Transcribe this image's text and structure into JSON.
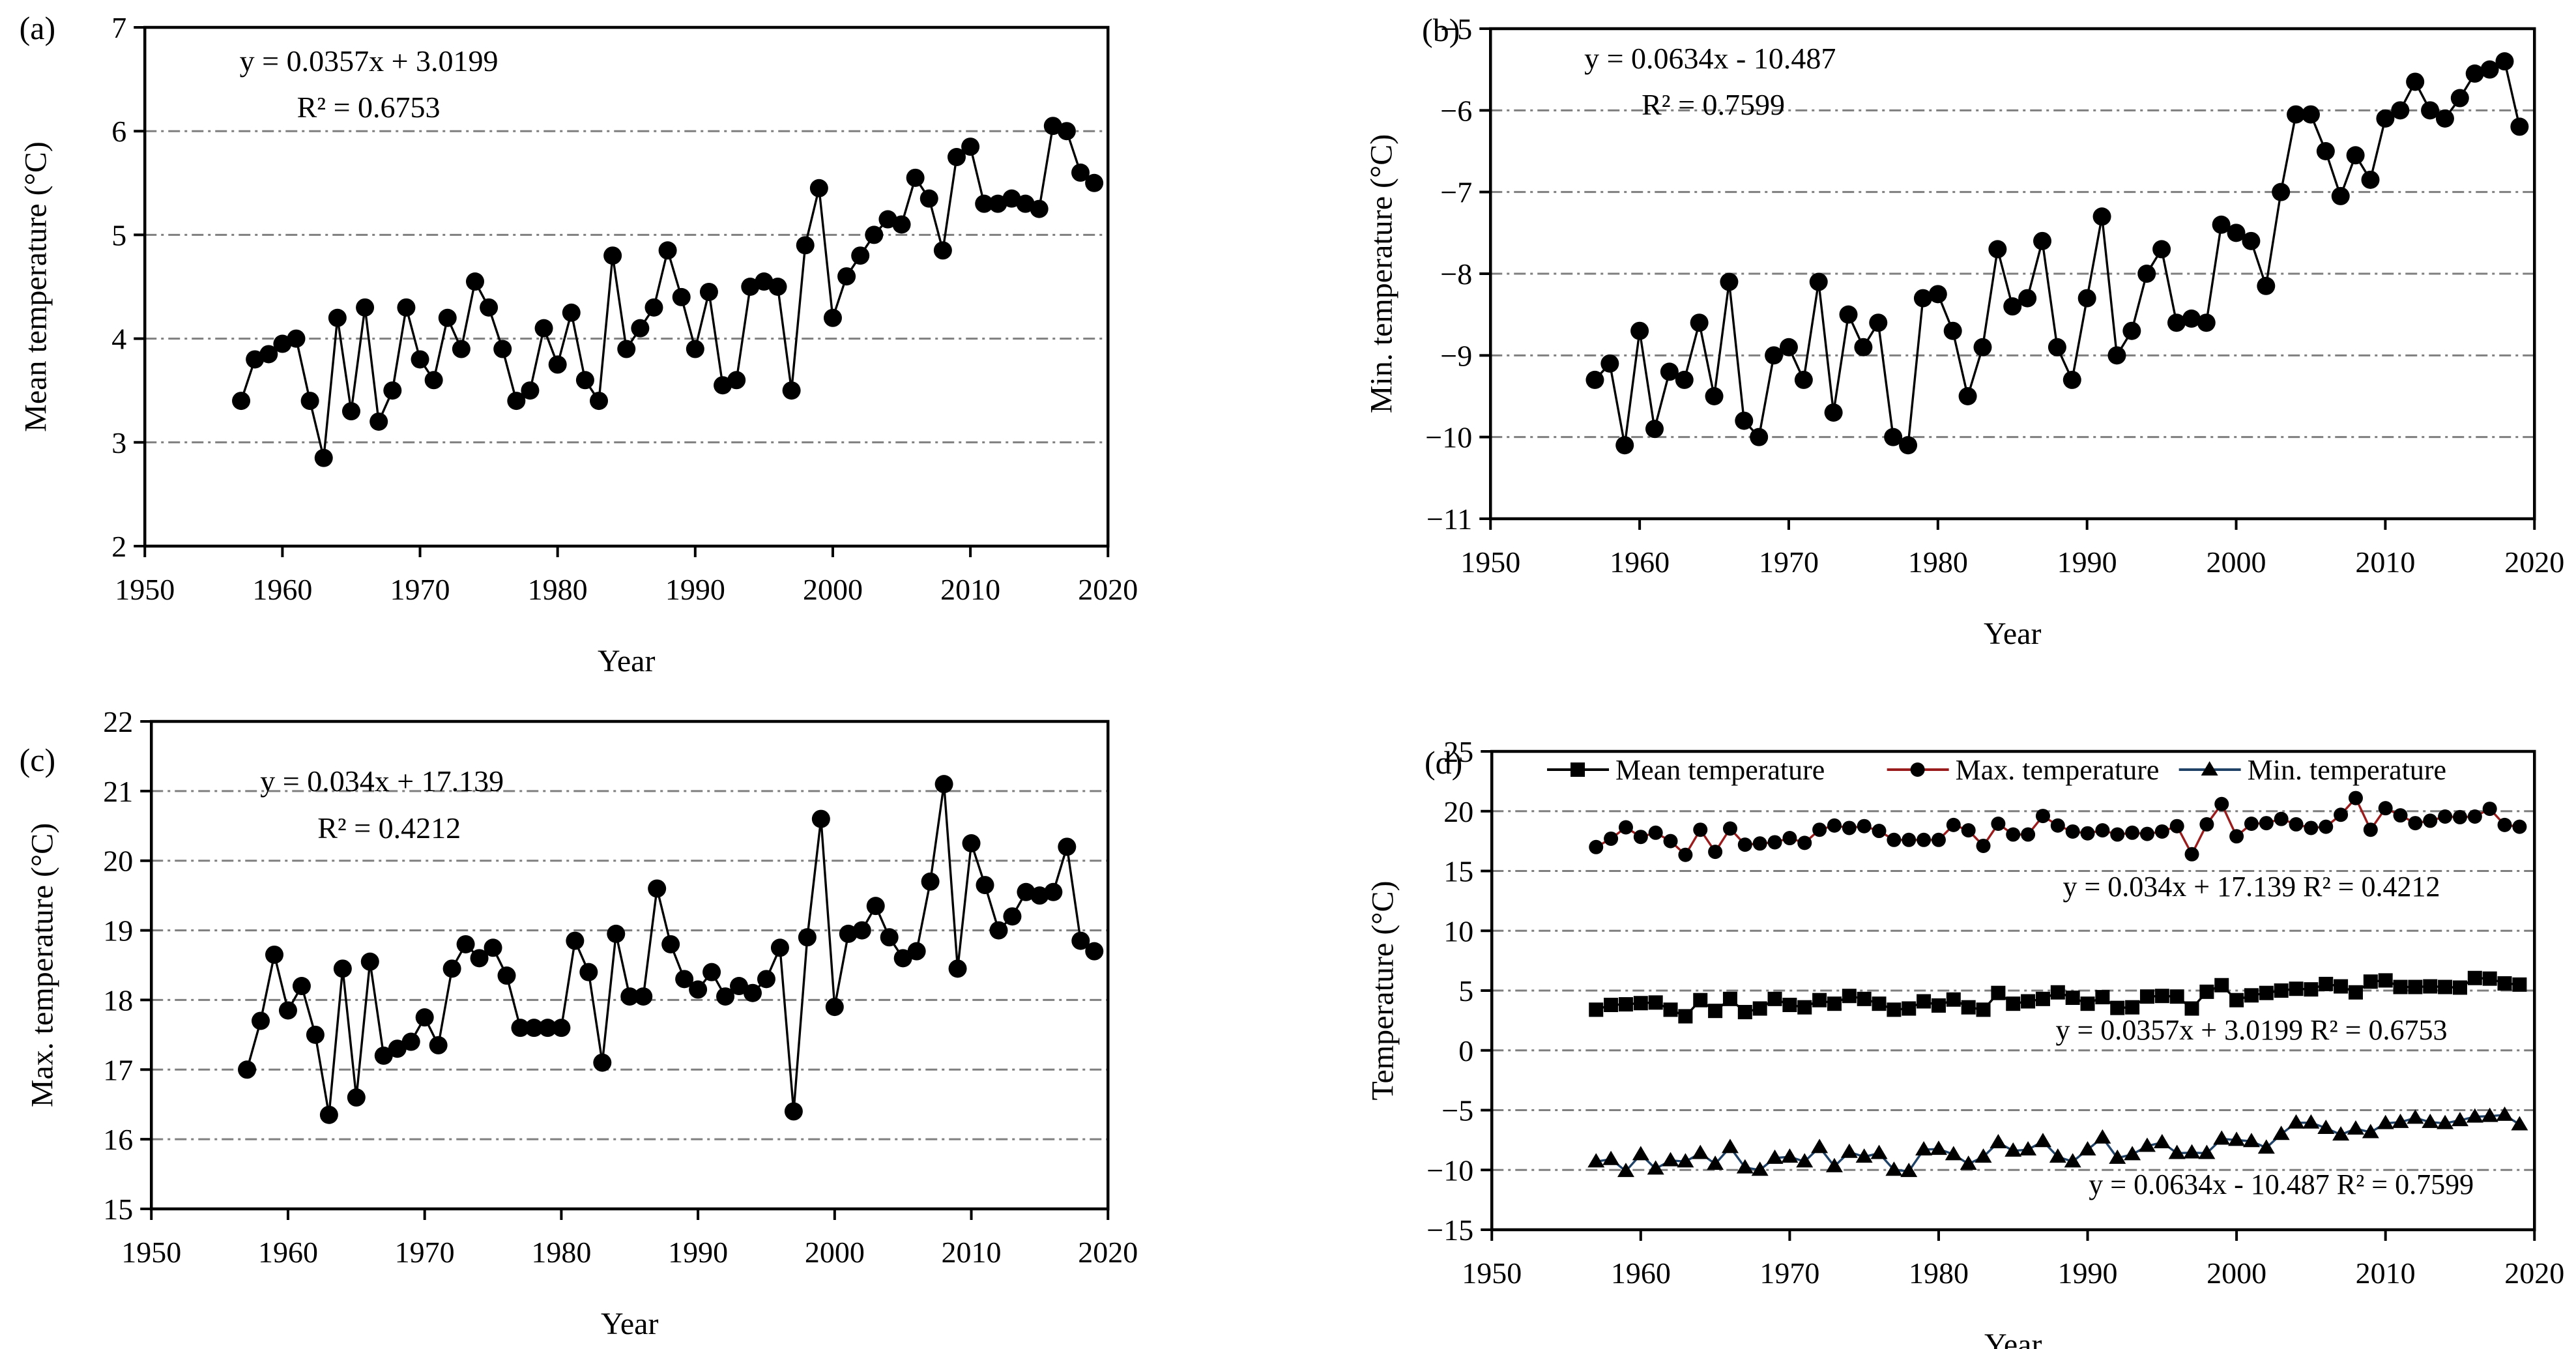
{
  "chart_data": [
    {
      "panel": "a",
      "tag": "(a)",
      "type": "line",
      "equation": "y = 0.0357x + 3.0199",
      "r_squared": "R² = 0.6753",
      "xlabel": "Year",
      "ylabel": "Mean temperature (°C)",
      "xlim": [
        1950,
        2020
      ],
      "ylim": [
        2,
        7
      ],
      "xticks": [
        1950,
        1960,
        1970,
        1980,
        1990,
        2000,
        2010,
        2020
      ],
      "yticks": [
        2,
        3,
        4,
        5,
        6,
        7
      ],
      "grid": "horizontal-dash-dot",
      "x_start": 1957,
      "x_step": 1,
      "series": [
        {
          "name": "Mean temperature",
          "marker": "circle",
          "line_color": "#000000",
          "marker_color": "#000000",
          "values": [
            3.4,
            3.8,
            3.85,
            3.95,
            4.0,
            3.4,
            2.85,
            4.2,
            3.3,
            4.3,
            3.2,
            3.5,
            4.3,
            3.8,
            3.6,
            4.2,
            3.9,
            4.55,
            4.3,
            3.9,
            3.4,
            3.5,
            4.1,
            3.75,
            4.25,
            3.6,
            3.4,
            4.8,
            3.9,
            4.1,
            4.3,
            4.85,
            4.4,
            3.9,
            4.45,
            3.55,
            3.6,
            4.5,
            4.55,
            4.5,
            3.5,
            4.9,
            5.45,
            4.2,
            4.6,
            4.8,
            5.0,
            5.15,
            5.1,
            5.55,
            5.35,
            4.85,
            5.75,
            5.85,
            5.3,
            5.3,
            5.35,
            5.3,
            5.25,
            6.05,
            6.0,
            5.6,
            5.5
          ]
        }
      ]
    },
    {
      "panel": "b",
      "tag": "(b)",
      "type": "line",
      "equation": "y = 0.0634x - 10.487",
      "r_squared": "R² = 0.7599",
      "xlabel": "Year",
      "ylabel": "Min. temperature (°C)",
      "xlim": [
        1950,
        2020
      ],
      "ylim": [
        -11,
        -5
      ],
      "xticks": [
        1950,
        1960,
        1970,
        1980,
        1990,
        2000,
        2010,
        2020
      ],
      "yticks": [
        -11,
        -10,
        -9,
        -8,
        -7,
        -6,
        -5
      ],
      "grid": "horizontal-dash-dot",
      "x_start": 1957,
      "x_step": 1,
      "series": [
        {
          "name": "Min. temperature",
          "marker": "circle",
          "line_color": "#000000",
          "marker_color": "#000000",
          "values": [
            -9.3,
            -9.1,
            -10.1,
            -8.7,
            -9.9,
            -9.2,
            -9.3,
            -8.6,
            -9.5,
            -8.1,
            -9.8,
            -10.0,
            -9.0,
            -8.9,
            -9.3,
            -8.1,
            -9.7,
            -8.5,
            -8.9,
            -8.6,
            -10.0,
            -10.1,
            -8.3,
            -8.25,
            -8.7,
            -9.5,
            -8.9,
            -7.7,
            -8.4,
            -8.3,
            -7.6,
            -8.9,
            -9.3,
            -8.3,
            -7.3,
            -9.0,
            -8.7,
            -8.0,
            -7.7,
            -8.6,
            -8.55,
            -8.6,
            -7.4,
            -7.5,
            -7.6,
            -8.15,
            -7.0,
            -6.05,
            -6.05,
            -6.5,
            -7.05,
            -6.55,
            -6.85,
            -6.1,
            -6.0,
            -5.65,
            -6.0,
            -6.1,
            -5.85,
            -5.55,
            -5.5,
            -5.4,
            -6.2
          ]
        }
      ]
    },
    {
      "panel": "c",
      "tag": "(c)",
      "type": "line",
      "equation": "y = 0.034x + 17.139",
      "r_squared": "R² = 0.4212",
      "xlabel": "Year",
      "ylabel": "Max. temperature (°C)",
      "xlim": [
        1950,
        2020
      ],
      "ylim": [
        15,
        22
      ],
      "xticks": [
        1950,
        1960,
        1970,
        1980,
        1990,
        2000,
        2010,
        2020
      ],
      "yticks": [
        15,
        16,
        17,
        18,
        19,
        20,
        21,
        22
      ],
      "grid": "horizontal-dash-dot",
      "x_start": 1957,
      "x_step": 1,
      "series": [
        {
          "name": "Max. temperature",
          "marker": "circle",
          "line_color": "#000000",
          "marker_color": "#000000",
          "values": [
            17.0,
            17.7,
            18.65,
            17.85,
            18.2,
            17.5,
            16.35,
            18.45,
            16.6,
            18.55,
            17.2,
            17.3,
            17.4,
            17.75,
            17.35,
            18.45,
            18.8,
            18.6,
            18.75,
            18.35,
            17.6,
            17.6,
            17.6,
            17.6,
            18.85,
            18.4,
            17.1,
            18.95,
            18.05,
            18.05,
            19.6,
            18.8,
            18.3,
            18.15,
            18.4,
            18.05,
            18.2,
            18.1,
            18.3,
            18.75,
            16.4,
            18.9,
            20.6,
            17.9,
            18.95,
            19.0,
            19.35,
            18.9,
            18.6,
            18.7,
            19.7,
            21.1,
            18.45,
            20.25,
            19.65,
            19.0,
            19.2,
            19.55,
            19.5,
            19.55,
            20.2,
            18.85,
            18.7
          ]
        }
      ]
    },
    {
      "panel": "d",
      "tag": "(d)",
      "type": "line",
      "xlabel": "Year",
      "ylabel": "Temperature (°C)",
      "xlim": [
        1950,
        2020
      ],
      "ylim": [
        -15,
        25
      ],
      "xticks": [
        1950,
        1960,
        1970,
        1980,
        1990,
        2000,
        2010,
        2020
      ],
      "yticks": [
        -15,
        -10,
        -5,
        0,
        5,
        10,
        15,
        20,
        25
      ],
      "grid": "horizontal-dash-dot",
      "x_start": 1957,
      "x_step": 1,
      "legend": [
        {
          "label": "Mean temperature",
          "marker": "square",
          "color": "#000000"
        },
        {
          "label": "Max. temperature",
          "marker": "circle",
          "color": "#9b1c1c"
        },
        {
          "label": "Min. temperature",
          "marker": "triangle",
          "color": "#1f4266"
        }
      ],
      "annotations": [
        {
          "text": "y = 0.034x + 17.139  R² = 0.4212",
          "x": 2001,
          "y": 12.9
        },
        {
          "text": "y = 0.0357x + 3.0199  R² = 0.6753",
          "x": 2001,
          "y": 0.9
        },
        {
          "text": "y = 0.0634x - 10.487  R² = 0.7599",
          "x": 2003,
          "y": -12.0
        }
      ],
      "series": [
        {
          "name": "Mean temperature",
          "marker": "square",
          "line_color": "#000000",
          "marker_color": "#000000",
          "values": [
            3.4,
            3.8,
            3.85,
            3.95,
            4.0,
            3.4,
            2.85,
            4.2,
            3.3,
            4.3,
            3.2,
            3.5,
            4.3,
            3.8,
            3.6,
            4.2,
            3.9,
            4.55,
            4.3,
            3.9,
            3.4,
            3.5,
            4.1,
            3.75,
            4.25,
            3.6,
            3.4,
            4.8,
            3.9,
            4.1,
            4.3,
            4.85,
            4.4,
            3.9,
            4.45,
            3.55,
            3.6,
            4.5,
            4.55,
            4.5,
            3.5,
            4.9,
            5.45,
            4.2,
            4.6,
            4.8,
            5.0,
            5.15,
            5.1,
            5.55,
            5.35,
            4.85,
            5.75,
            5.85,
            5.3,
            5.3,
            5.35,
            5.3,
            5.25,
            6.05,
            6.0,
            5.6,
            5.5
          ]
        },
        {
          "name": "Max. temperature",
          "marker": "circle",
          "line_color": "#9b1c1c",
          "marker_color": "#000000",
          "values": [
            17.0,
            17.7,
            18.65,
            17.85,
            18.2,
            17.5,
            16.35,
            18.45,
            16.6,
            18.55,
            17.2,
            17.3,
            17.4,
            17.75,
            17.35,
            18.45,
            18.8,
            18.6,
            18.75,
            18.35,
            17.6,
            17.6,
            17.6,
            17.6,
            18.85,
            18.4,
            17.1,
            18.95,
            18.05,
            18.05,
            19.6,
            18.8,
            18.3,
            18.15,
            18.4,
            18.05,
            18.2,
            18.1,
            18.3,
            18.75,
            16.4,
            18.9,
            20.6,
            17.9,
            18.95,
            19.0,
            19.35,
            18.9,
            18.6,
            18.7,
            19.7,
            21.1,
            18.45,
            20.25,
            19.65,
            19.0,
            19.2,
            19.55,
            19.5,
            19.55,
            20.2,
            18.85,
            18.7
          ]
        },
        {
          "name": "Min. temperature",
          "marker": "triangle",
          "line_color": "#1f4266",
          "marker_color": "#000000",
          "values": [
            -9.3,
            -9.1,
            -10.1,
            -8.7,
            -9.9,
            -9.2,
            -9.3,
            -8.6,
            -9.5,
            -8.1,
            -9.8,
            -10.0,
            -9.0,
            -8.9,
            -9.3,
            -8.1,
            -9.7,
            -8.5,
            -8.9,
            -8.6,
            -10.0,
            -10.1,
            -8.3,
            -8.25,
            -8.7,
            -9.5,
            -8.9,
            -7.7,
            -8.4,
            -8.3,
            -7.6,
            -8.9,
            -9.3,
            -8.3,
            -7.3,
            -9.0,
            -8.7,
            -8.0,
            -7.7,
            -8.6,
            -8.55,
            -8.6,
            -7.4,
            -7.5,
            -7.6,
            -8.15,
            -7.0,
            -6.05,
            -6.05,
            -6.5,
            -7.05,
            -6.55,
            -6.85,
            -6.1,
            -6.0,
            -5.65,
            -6.0,
            -6.1,
            -5.85,
            -5.55,
            -5.5,
            -5.4,
            -6.2
          ]
        }
      ]
    }
  ]
}
